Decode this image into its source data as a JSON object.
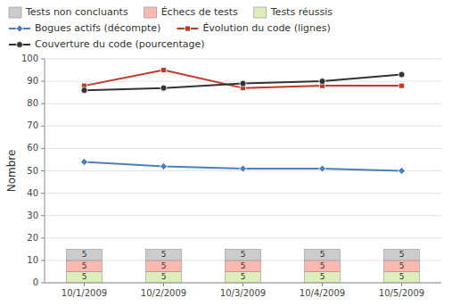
{
  "chart_data": {
    "type": "bar",
    "stacked": true,
    "categories": [
      "10/1/2009",
      "10/2/2009",
      "10/3/2009",
      "10/4/2009",
      "10/5/2009"
    ],
    "y_label": "Nombre",
    "ylim": [
      0,
      100
    ],
    "yticks": [
      0,
      10,
      20,
      30,
      40,
      50,
      60,
      70,
      80,
      90,
      100
    ],
    "grid": true,
    "legend": "top",
    "series": [
      {
        "name": "Tests réussis",
        "type": "bar",
        "color": "#ddeebb",
        "data_labels": true,
        "values": [
          5,
          5,
          5,
          5,
          5
        ]
      },
      {
        "name": "Échecs de tests",
        "type": "bar",
        "color": "#f9b8b0",
        "data_labels": true,
        "values": [
          5,
          5,
          5,
          5,
          5
        ]
      },
      {
        "name": "Tests non concluants",
        "type": "bar",
        "color": "#cccccc",
        "data_labels": true,
        "values": [
          5,
          5,
          5,
          5,
          5
        ]
      },
      {
        "name": "Bogues actifs (décompte)",
        "type": "line",
        "color": "#4e7fba",
        "marker": "diamond",
        "values": [
          54,
          52,
          51,
          51,
          50
        ]
      },
      {
        "name": "Évolution du code (lignes)",
        "type": "line",
        "color": "#c0392b",
        "marker": "square",
        "values": [
          88,
          95,
          87,
          88,
          88
        ]
      },
      {
        "name": "Couverture du code (pourcentage)",
        "type": "line",
        "color": "#333333",
        "marker": "circle",
        "values": [
          86,
          87,
          89,
          90,
          93
        ]
      }
    ]
  }
}
